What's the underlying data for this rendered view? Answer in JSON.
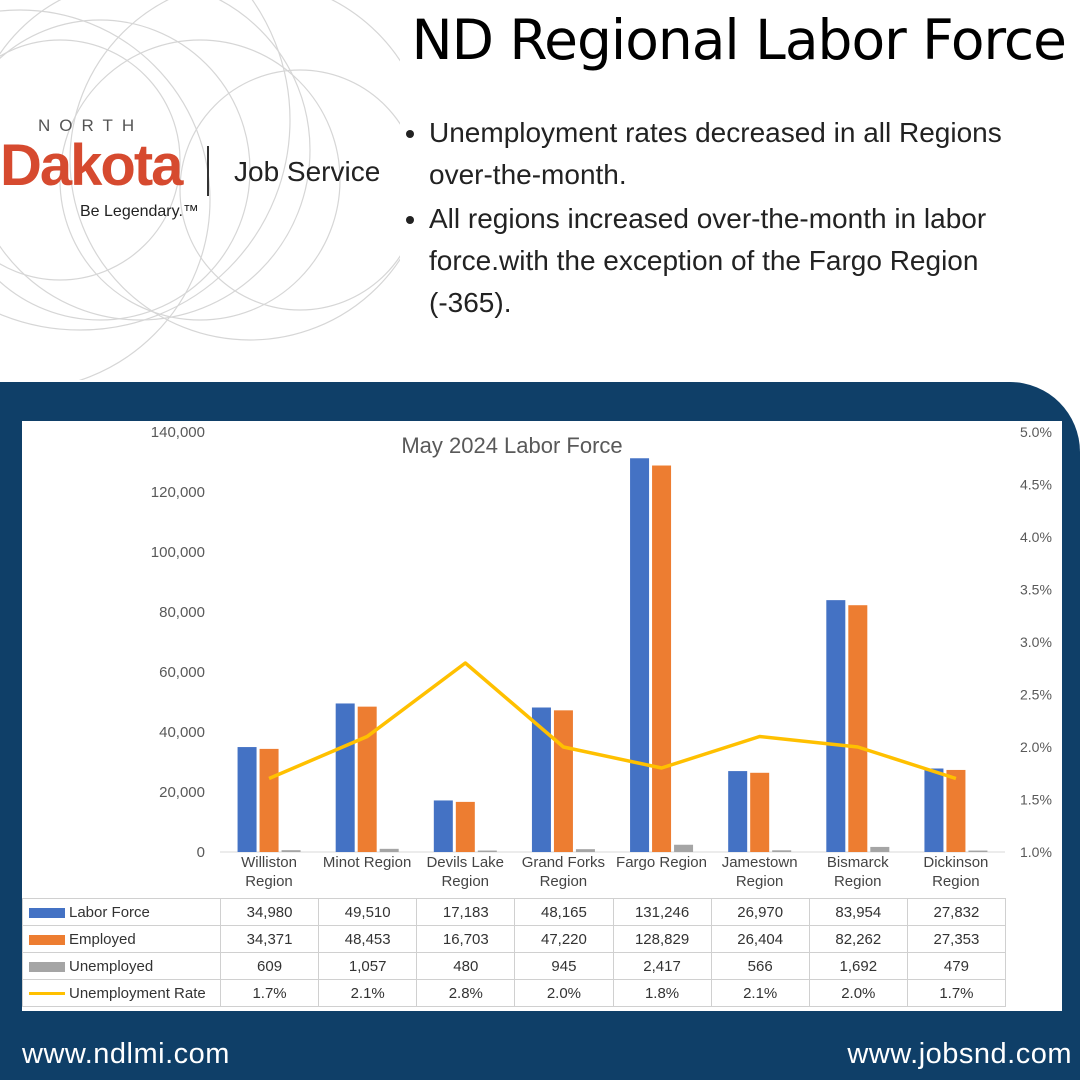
{
  "header": {
    "title": "ND Regional Labor Force"
  },
  "logo": {
    "top": "NORTH",
    "brand": "Dakota",
    "service": "Job Service",
    "tagline": "Be Legendary.™"
  },
  "bullets": [
    "Unemployment rates decreased in all Regions over-the-month.",
    "All regions increased over-the-month in labor force.with the exception of the Fargo Region (-365)."
  ],
  "footer": {
    "left": "www.ndlmi.com",
    "right": "www.jobsnd.com"
  },
  "chart_data": {
    "type": "bar",
    "title": "May 2024 Labor Force",
    "categories": [
      "Williston Region",
      "Minot Region",
      "Devils Lake Region",
      "Grand Forks Region",
      "Fargo Region",
      "Jamestown Region",
      "Bismarck Region",
      "Dickinson Region"
    ],
    "series": [
      {
        "name": "Labor Force",
        "color": "#4472c4",
        "values": [
          34980,
          49510,
          17183,
          48165,
          131246,
          26970,
          83954,
          27832
        ],
        "value_labels": [
          "34,980",
          "49,510",
          "17,183",
          "48,165",
          "131,246",
          "26,970",
          "83,954",
          "27,832"
        ]
      },
      {
        "name": "Employed",
        "color": "#ed7d31",
        "values": [
          34371,
          48453,
          16703,
          47220,
          128829,
          26404,
          82262,
          27353
        ],
        "value_labels": [
          "34,371",
          "48,453",
          "16,703",
          "47,220",
          "128,829",
          "26,404",
          "82,262",
          "27,353"
        ]
      },
      {
        "name": "Unemployed",
        "color": "#a5a5a5",
        "values": [
          609,
          1057,
          480,
          945,
          2417,
          566,
          1692,
          479
        ],
        "value_labels": [
          "609",
          "1,057",
          "480",
          "945",
          "2,417",
          "566",
          "1,692",
          "479"
        ]
      },
      {
        "name": "Unemployment Rate",
        "color": "#ffc000",
        "type": "line",
        "axis": "y2",
        "values": [
          1.7,
          2.1,
          2.8,
          2.0,
          1.8,
          2.1,
          2.0,
          1.7
        ],
        "value_labels": [
          "1.7%",
          "2.1%",
          "2.8%",
          "2.0%",
          "1.8%",
          "2.1%",
          "2.0%",
          "1.7%"
        ]
      }
    ],
    "ylim": [
      0,
      140000
    ],
    "yticks": [
      0,
      {
        "value": 20000,
        "label": "20,000"
      },
      {
        "value": 40000,
        "label": "40,000"
      },
      {
        "value": 60000,
        "label": "60,000"
      },
      {
        "value": 80000,
        "label": "80,000"
      },
      {
        "value": 100000,
        "label": "100,000"
      },
      {
        "value": 120000,
        "label": "120,000"
      },
      {
        "value": 140000,
        "label": "140,000"
      }
    ],
    "y2lim": [
      1.0,
      5.0
    ],
    "y2ticks": [
      {
        "value": 1.0,
        "label": "1.0%"
      },
      {
        "value": 1.5,
        "label": "1.5%"
      },
      {
        "value": 2.0,
        "label": "2.0%"
      },
      {
        "value": 2.5,
        "label": "2.5%"
      },
      {
        "value": 3.0,
        "label": "3.0%"
      },
      {
        "value": 3.5,
        "label": "3.5%"
      },
      {
        "value": 4.0,
        "label": "4.0%"
      },
      {
        "value": 4.5,
        "label": "4.5%"
      },
      {
        "value": 5.0,
        "label": "5.0%"
      }
    ]
  }
}
